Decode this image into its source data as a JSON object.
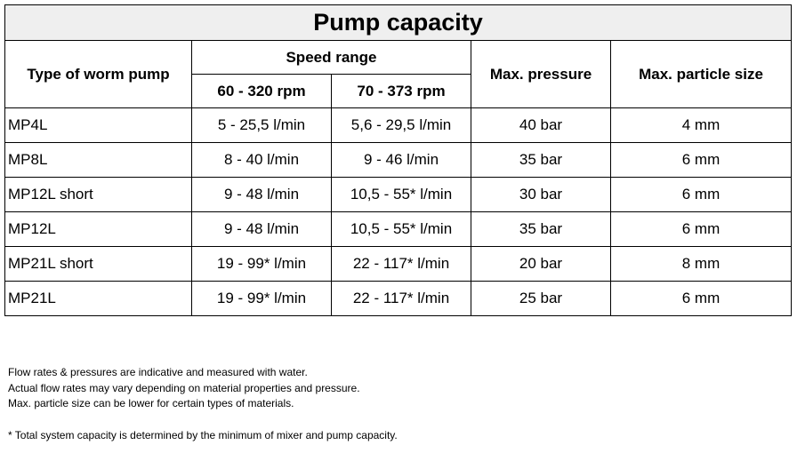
{
  "title": "Pump capacity",
  "headers": {
    "type": "Type of worm pump",
    "speed_range": "Speed range",
    "speed_1": "60 - 320 rpm",
    "speed_2": "70 - 373 rpm",
    "pressure": "Max. pressure",
    "particle": "Max. particle size"
  },
  "rows": [
    {
      "type": "MP4L",
      "flow_1": "5 - 25,5 l/min",
      "flow_2": "5,6 - 29,5 l/min",
      "pressure": "40 bar",
      "particle": "4 mm"
    },
    {
      "type": "MP8L",
      "flow_1": "8 - 40 l/min",
      "flow_2": "9 - 46 l/min",
      "pressure": "35 bar",
      "particle": "6 mm"
    },
    {
      "type": "MP12L short",
      "flow_1": "9 - 48 l/min",
      "flow_2": "10,5 - 55* l/min",
      "pressure": "30 bar",
      "particle": "6 mm"
    },
    {
      "type": "MP12L",
      "flow_1": "9 - 48 l/min",
      "flow_2": "10,5 - 55* l/min",
      "pressure": "35 bar",
      "particle": "6 mm"
    },
    {
      "type": "MP21L short",
      "flow_1": "19 - 99* l/min",
      "flow_2": "22 - 117* l/min",
      "pressure": "20 bar",
      "particle": "8 mm"
    },
    {
      "type": "MP21L",
      "flow_1": "19 - 99* l/min",
      "flow_2": "22 - 117* l/min",
      "pressure": "25 bar",
      "particle": "6 mm"
    }
  ],
  "notes": [
    "Flow rates & pressures are indicative and measured with water.",
    "Actual flow rates may vary depending on material properties and pressure.",
    "Max. particle size can be lower for certain types of materials."
  ],
  "footnote": "* Total system capacity is determined by the minimum of mixer and pump capacity."
}
